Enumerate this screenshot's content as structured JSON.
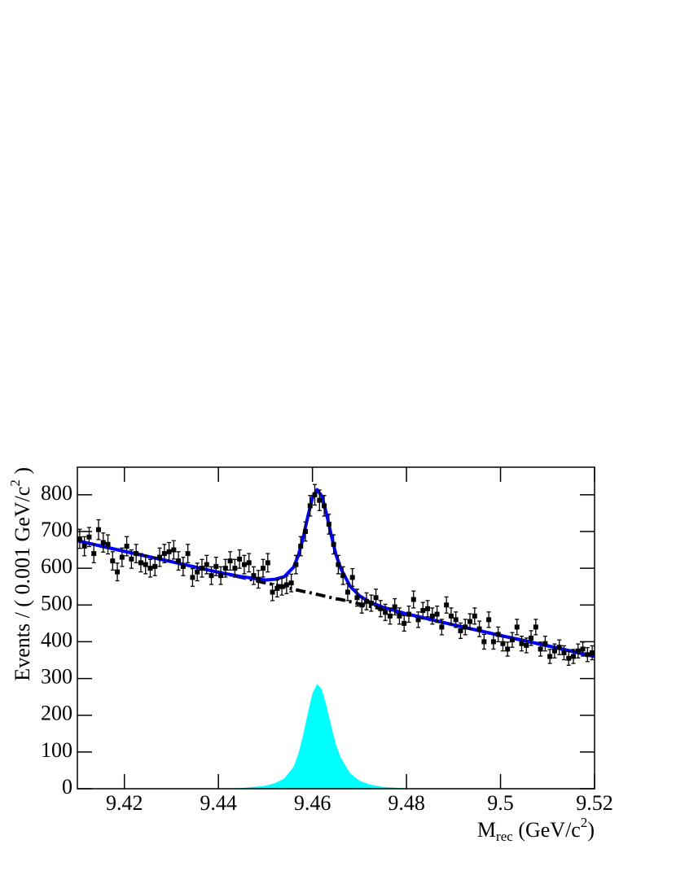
{
  "chart_data": {
    "type": "fit",
    "x_label": [
      "M",
      "rec",
      " (GeV/c",
      "2",
      ")"
    ],
    "y_label": [
      "Events / ( 0.001 GeV/c",
      "2",
      " )"
    ],
    "xlim": [
      9.41,
      9.52
    ],
    "xticks": [
      9.42,
      9.44,
      9.46,
      9.48,
      9.5,
      9.52
    ],
    "ylim": [
      0,
      875
    ],
    "yticks": [
      0,
      100,
      200,
      300,
      400,
      500,
      600,
      700,
      800
    ],
    "series": [
      {
        "style": "area",
        "color": "#00ffff",
        "x": [
          9.41,
          9.42,
          9.43,
          9.44,
          9.445,
          9.45,
          9.452,
          9.454,
          9.456,
          9.457,
          9.458,
          9.459,
          9.46,
          9.461,
          9.462,
          9.463,
          9.464,
          9.465,
          9.466,
          9.468,
          9.47,
          9.472,
          9.475,
          9.48,
          9.49,
          9.5,
          9.51,
          9.52
        ],
        "values": [
          0,
          0,
          0,
          0,
          2,
          8,
          15,
          28,
          60,
          95,
          145,
          205,
          260,
          285,
          270,
          225,
          170,
          120,
          85,
          42,
          22,
          12,
          5,
          1,
          0,
          0,
          0,
          0
        ]
      },
      {
        "style": "dashdot",
        "color": "#000000",
        "x": [
          9.41,
          9.42,
          9.43,
          9.44,
          9.445,
          9.45,
          9.452,
          9.454,
          9.456,
          9.457,
          9.458,
          9.459,
          9.46,
          9.461,
          9.462,
          9.463,
          9.464,
          9.465,
          9.466,
          9.468,
          9.47,
          9.472,
          9.475,
          9.48,
          9.49,
          9.5,
          9.51,
          9.52
        ],
        "values": [
          675,
          646,
          618,
          589,
          575,
          560,
          555,
          549,
          543,
          540,
          537,
          535,
          532,
          529,
          526,
          523,
          520,
          517,
          515,
          509,
          503,
          497,
          489,
          475,
          446,
          417,
          389,
          360
        ]
      },
      {
        "style": "line",
        "color": "#0000ff",
        "x": [
          9.41,
          9.42,
          9.43,
          9.44,
          9.445,
          9.45,
          9.452,
          9.454,
          9.456,
          9.457,
          9.458,
          9.459,
          9.46,
          9.461,
          9.462,
          9.463,
          9.464,
          9.465,
          9.466,
          9.468,
          9.47,
          9.472,
          9.475,
          9.48,
          9.49,
          9.5,
          9.51,
          9.52
        ],
        "values": [
          675,
          646,
          618,
          589,
          577,
          568,
          570,
          577,
          603,
          635,
          682,
          740,
          792,
          814,
          796,
          748,
          690,
          637,
          600,
          551,
          525,
          509,
          494,
          476,
          446,
          417,
          389,
          360
        ]
      },
      {
        "style": "points",
        "color": "#000000",
        "x": [
          9.4105,
          9.4115,
          9.4125,
          9.4135,
          9.4145,
          9.4155,
          9.4165,
          9.4175,
          9.4185,
          9.4195,
          9.4205,
          9.4215,
          9.4225,
          9.4235,
          9.4245,
          9.4255,
          9.4265,
          9.4275,
          9.4285,
          9.4295,
          9.4305,
          9.4315,
          9.4325,
          9.4335,
          9.4345,
          9.4355,
          9.4365,
          9.4375,
          9.4385,
          9.4395,
          9.4405,
          9.4415,
          9.4425,
          9.4435,
          9.4445,
          9.4455,
          9.4465,
          9.4475,
          9.4485,
          9.4495,
          9.4505,
          9.4515,
          9.4525,
          9.4535,
          9.4545,
          9.4555,
          9.4565,
          9.4575,
          9.4585,
          9.4595,
          9.4605,
          9.4615,
          9.4625,
          9.4635,
          9.4645,
          9.4655,
          9.4665,
          9.4675,
          9.4685,
          9.4695,
          9.4705,
          9.4715,
          9.4725,
          9.4735,
          9.4745,
          9.4755,
          9.4765,
          9.4775,
          9.4785,
          9.4795,
          9.4805,
          9.4815,
          9.4825,
          9.4835,
          9.4845,
          9.4855,
          9.4865,
          9.4875,
          9.4885,
          9.4895,
          9.4905,
          9.4915,
          9.4925,
          9.4935,
          9.4945,
          9.4955,
          9.4965,
          9.4975,
          9.4985,
          9.4995,
          9.5005,
          9.5015,
          9.5025,
          9.5035,
          9.5045,
          9.5055,
          9.5065,
          9.5075,
          9.5085,
          9.5095,
          9.5105,
          9.5115,
          9.5125,
          9.5135,
          9.5145,
          9.5155,
          9.5165,
          9.5175,
          9.5185,
          9.5195
        ],
        "values": [
          680,
          660,
          685,
          640,
          705,
          670,
          665,
          620,
          590,
          630,
          660,
          625,
          640,
          615,
          610,
          600,
          605,
          630,
          640,
          645,
          650,
          620,
          605,
          640,
          575,
          590,
          600,
          610,
          580,
          605,
          580,
          600,
          620,
          600,
          625,
          610,
          615,
          580,
          570,
          600,
          615,
          535,
          545,
          550,
          555,
          560,
          610,
          660,
          700,
          770,
          800,
          785,
          770,
          720,
          665,
          610,
          580,
          535,
          575,
          520,
          500,
          510,
          505,
          520,
          490,
          480,
          470,
          495,
          470,
          450,
          475,
          515,
          460,
          485,
          490,
          470,
          475,
          440,
          500,
          470,
          460,
          430,
          440,
          455,
          470,
          435,
          400,
          460,
          400,
          420,
          395,
          380,
          405,
          440,
          395,
          390,
          410,
          440,
          380,
          395,
          360,
          375,
          385,
          370,
          355,
          360,
          375,
          380,
          365,
          370
        ],
        "errors": [
          26,
          26,
          26,
          25,
          27,
          26,
          26,
          25,
          24,
          25,
          26,
          25,
          25,
          25,
          25,
          24,
          25,
          25,
          25,
          25,
          25,
          25,
          25,
          25,
          24,
          24,
          24,
          25,
          24,
          25,
          24,
          24,
          25,
          24,
          25,
          25,
          25,
          24,
          24,
          24,
          25,
          23,
          23,
          23,
          24,
          24,
          25,
          26,
          26,
          28,
          28,
          28,
          28,
          27,
          26,
          25,
          24,
          23,
          24,
          23,
          22,
          23,
          22,
          23,
          22,
          22,
          22,
          22,
          22,
          21,
          22,
          23,
          21,
          22,
          22,
          22,
          22,
          21,
          22,
          22,
          21,
          21,
          21,
          21,
          22,
          21,
          20,
          21,
          20,
          20,
          20,
          19,
          20,
          21,
          20,
          20,
          20,
          21,
          19,
          20,
          19,
          19,
          20,
          19,
          19,
          19,
          19,
          19,
          19,
          19
        ]
      }
    ]
  }
}
